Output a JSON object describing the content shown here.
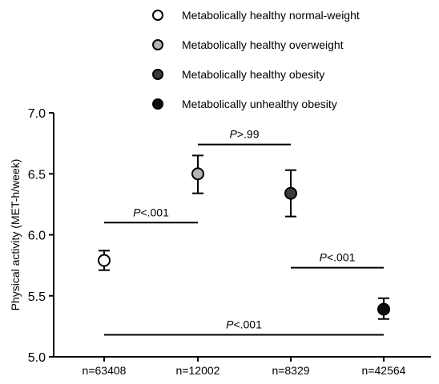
{
  "chart_data": {
    "type": "scatter",
    "ylabel": "Physical activity (MET-h/week)",
    "ylim": [
      5.0,
      7.0
    ],
    "yticks": [
      "5.0",
      "5.5",
      "6.0",
      "6.5",
      "7.0"
    ],
    "yticks_values": [
      5.0,
      5.5,
      6.0,
      6.5,
      7.0
    ],
    "categories": [
      "n=63408",
      "n=12002",
      "n=8329",
      "n=42564"
    ],
    "series": [
      {
        "name": "Metabolically healthy normal-weight",
        "category": "n=63408",
        "value": 5.79,
        "ci": [
          5.71,
          5.87
        ],
        "color": "#ffffff"
      },
      {
        "name": "Metabolically healthy overweight",
        "category": "n=12002",
        "value": 6.5,
        "ci": [
          6.34,
          6.65
        ],
        "color": "#b3b3b3"
      },
      {
        "name": "Metabolically healthy obesity",
        "category": "n=8329",
        "value": 6.34,
        "ci": [
          6.15,
          6.53
        ],
        "color": "#3c3c3c"
      },
      {
        "name": "Metabolically unhealthy obesity",
        "category": "n=42564",
        "value": 5.39,
        "ci": [
          5.31,
          5.48
        ],
        "color": "#0d0d0d"
      }
    ],
    "annotations": [
      {
        "italic": "P",
        "rest": "<.001",
        "from": 0,
        "to": 1,
        "y": 6.1
      },
      {
        "italic": "P",
        "rest": ">.99",
        "from": 1,
        "to": 2,
        "y": 6.74
      },
      {
        "italic": "P",
        "rest": "<.001",
        "from": 2,
        "to": 3,
        "y": 5.73
      },
      {
        "italic": "P",
        "rest": "<.001",
        "from": 0,
        "to": 3,
        "y": 5.18
      }
    ],
    "legend_position": "top",
    "grid": false
  }
}
